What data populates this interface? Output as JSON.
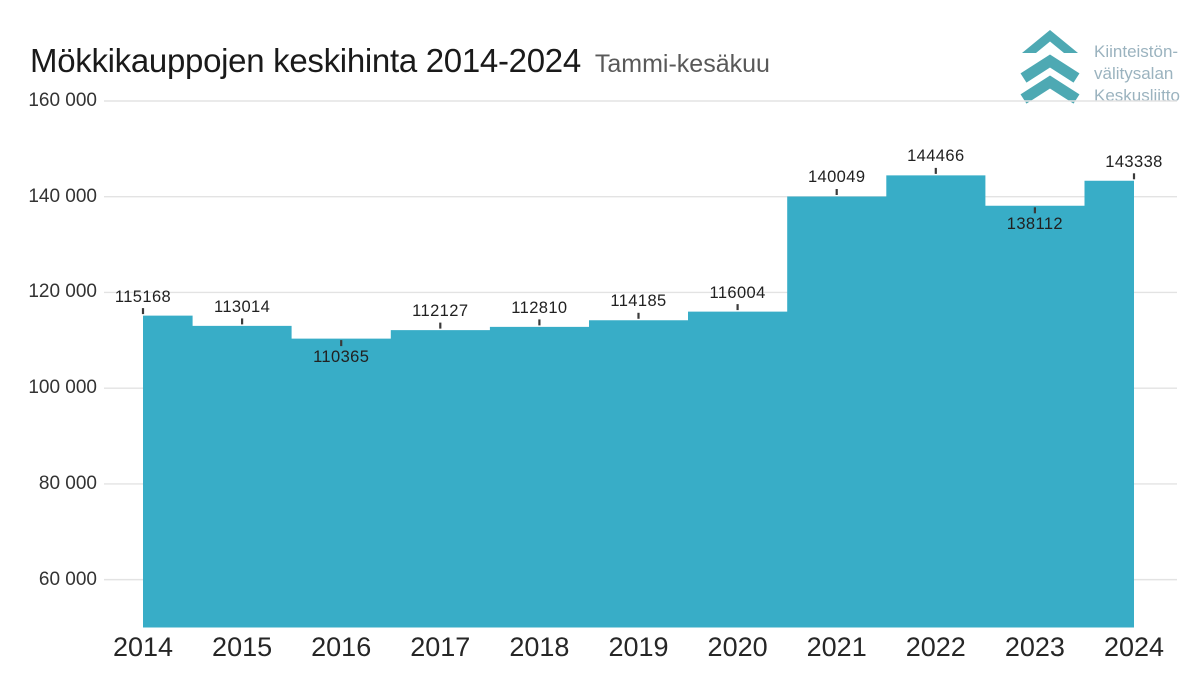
{
  "header": {
    "title": "Mökkikauppojen keskihinta 2014-2024",
    "subtitle": "Tammi-kesäkuu"
  },
  "logo": {
    "lines": [
      "Kiinteistön-",
      "välitysalan",
      "Keskusliitto"
    ],
    "chevron_color": "#4EA9B3",
    "text_color": "#9BB3BF"
  },
  "colors": {
    "area_fill": "#38ADC7",
    "gridline": "#E3E3E3",
    "value_label": "#212121",
    "point_tick": "#3A3A3A"
  },
  "chart_data": {
    "type": "area",
    "subtype": "step",
    "title": "Mökkikauppojen keskihinta 2014-2024",
    "subtitle": "Tammi-kesäkuu",
    "categories": [
      "2014",
      "2015",
      "2016",
      "2017",
      "2018",
      "2019",
      "2020",
      "2021",
      "2022",
      "2023",
      "2024"
    ],
    "values": [
      115168,
      113014,
      110365,
      112127,
      112810,
      114185,
      116004,
      140049,
      144466,
      138112,
      143338
    ],
    "xlabel": "",
    "ylabel": "",
    "ylim": [
      50000,
      160000
    ],
    "yticks": [
      {
        "value": 60000,
        "label": "60 000"
      },
      {
        "value": 80000,
        "label": "80 000"
      },
      {
        "value": 100000,
        "label": "100 000"
      },
      {
        "value": 120000,
        "label": "120 000"
      },
      {
        "value": 140000,
        "label": "140 000"
      },
      {
        "value": 160000,
        "label": "160 000"
      }
    ],
    "grid": true,
    "legend": false,
    "value_labels": true
  }
}
